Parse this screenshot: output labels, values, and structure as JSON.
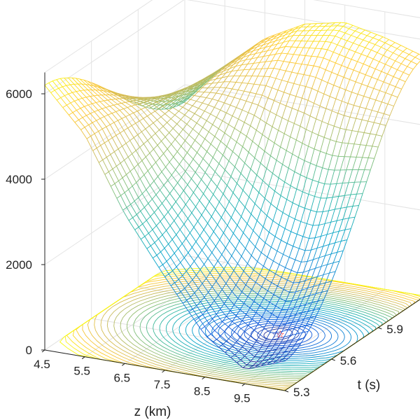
{
  "chart_data": {
    "type": "surface",
    "xlabel": "z (km)",
    "ylabel": "t (s)",
    "zlabel": "",
    "xlim": [
      4.5,
      10.5
    ],
    "ylim": [
      5.3,
      6.2
    ],
    "zlim": [
      0,
      6500
    ],
    "xticks": [
      "4.5",
      "5.5",
      "6.5",
      "7.5",
      "8.5",
      "9.5"
    ],
    "yticks": [
      "5.3",
      "5.6",
      "5.9",
      "6.2"
    ],
    "zticks": [
      "0",
      "2000",
      "4000",
      "6000"
    ],
    "grid": true,
    "colormap": "parula",
    "colormap_colors": [
      "#352a87",
      "#0f5cdd",
      "#1481d6",
      "#06a4ca",
      "#2eb7a4",
      "#87bf77",
      "#d1bb59",
      "#fec832",
      "#f9fb0e"
    ],
    "surface_z_samples": {
      "x": [
        4.5,
        5.5,
        6.5,
        7.5,
        8.5,
        9.5,
        10.5
      ],
      "y_low_edge": [
        6200,
        5200,
        3500,
        2200,
        1000,
        350,
        700
      ],
      "y_high_edge": [
        3600,
        4600,
        5400,
        5900,
        6100,
        5900,
        5600
      ]
    },
    "contour_projection": {
      "plane_z": 0,
      "minimum_marker": {
        "x": 8.7,
        "y": 5.72
      },
      "marker_colors": [
        "#ff0000",
        "#2233aa"
      ]
    }
  }
}
